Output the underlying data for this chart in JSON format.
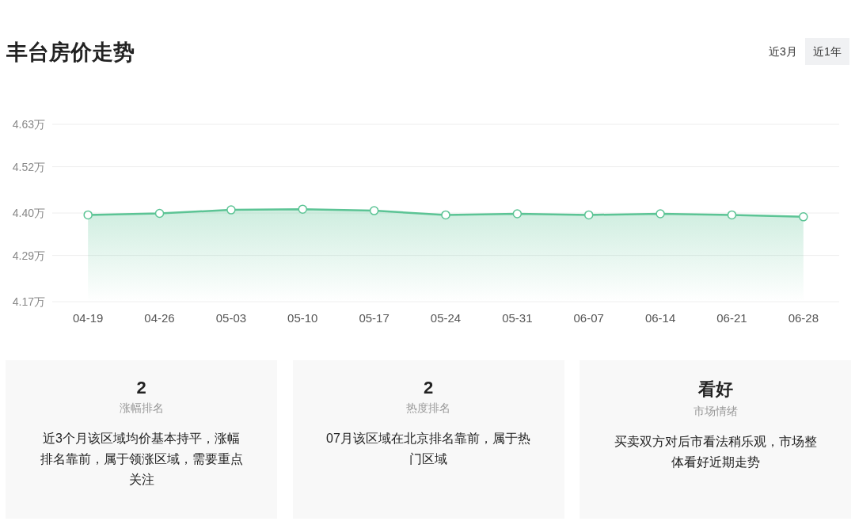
{
  "chart_data": [
    {
      "type": "area",
      "title": "丰台房价走势",
      "annotations": [
        "近3月",
        "近1年"
      ],
      "categories": [
        "04-19",
        "04-26",
        "05-03",
        "05-10",
        "05-17",
        "05-24",
        "05-31",
        "06-07",
        "06-14",
        "06-21",
        "06-28"
      ],
      "values": [
        4.395,
        4.399,
        4.408,
        4.41,
        4.406,
        4.395,
        4.398,
        4.395,
        4.398,
        4.395,
        4.39
      ],
      "color": "#5cc495",
      "marker": "circle",
      "grid": "y",
      "ylim": [
        4.17,
        4.63
      ],
      "yticks": [
        {
          "value": 4.17,
          "label": "4.17万"
        },
        {
          "value": 4.29,
          "label": "4.29万"
        },
        {
          "value": 4.4,
          "label": "4.40万"
        },
        {
          "value": 4.52,
          "label": "4.52万"
        },
        {
          "value": 4.63,
          "label": "4.63万"
        }
      ]
    },
    {
      "type": "other",
      "annotations": [
        "2",
        "涨幅排名",
        "近3个月该区域均价基本持平，涨幅排名靠前，属于领涨区域，需要重点关注",
        "2",
        "热度排名",
        "07月该区域在北京排名靠前，属于热门区域",
        "看好",
        "市场情绪",
        "买卖双方对后市看法稍乐观，市场整体看好近期走势"
      ]
    }
  ]
}
